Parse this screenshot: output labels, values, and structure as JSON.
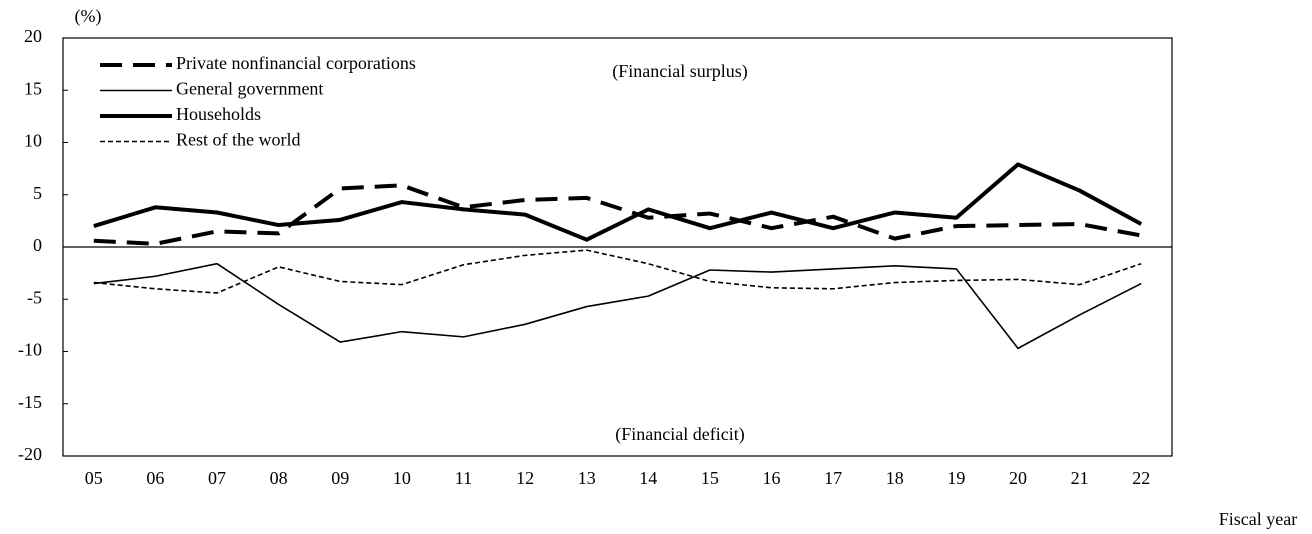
{
  "chart_data": {
    "type": "line",
    "y_unit_label": "(%)",
    "x_label": "Fiscal year",
    "annotations": [
      "(Financial surplus)",
      "(Financial deficit)"
    ],
    "categories": [
      "05",
      "06",
      "07",
      "08",
      "09",
      "10",
      "11",
      "12",
      "13",
      "14",
      "15",
      "16",
      "17",
      "18",
      "19",
      "20",
      "21",
      "22"
    ],
    "series": [
      {
        "name": "Private nonfinancial corporations",
        "color": "#000000",
        "dash": "long",
        "weight": "thick",
        "values": [
          0.6,
          0.3,
          1.5,
          1.3,
          5.6,
          5.9,
          3.8,
          4.5,
          4.7,
          2.8,
          3.2,
          1.8,
          2.9,
          0.8,
          2.0,
          2.1,
          2.2,
          1.1
        ]
      },
      {
        "name": "General government",
        "color": "#000000",
        "dash": "solid",
        "weight": "thin",
        "values": [
          -3.5,
          -2.8,
          -1.6,
          -5.5,
          -9.1,
          -8.1,
          -8.6,
          -7.4,
          -5.7,
          -4.7,
          -2.2,
          -2.4,
          -2.1,
          -1.8,
          -2.1,
          -9.7,
          -6.5,
          -3.5
        ]
      },
      {
        "name": "Households",
        "color": "#000000",
        "dash": "solid",
        "weight": "thick",
        "values": [
          2.0,
          3.8,
          3.3,
          2.1,
          2.6,
          4.3,
          3.6,
          3.1,
          0.7,
          3.6,
          1.8,
          3.3,
          1.8,
          3.3,
          2.8,
          7.9,
          5.4,
          2.2
        ]
      },
      {
        "name": "Rest of the world",
        "color": "#000000",
        "dash": "short",
        "weight": "thin",
        "values": [
          -3.4,
          -4.0,
          -4.4,
          -1.9,
          -3.3,
          -3.6,
          -1.7,
          -0.8,
          -0.3,
          -1.6,
          -3.3,
          -3.9,
          -4.0,
          -3.4,
          -3.2,
          -3.1,
          -3.6,
          -1.6
        ]
      }
    ],
    "ylim": [
      -20,
      20
    ],
    "yticks": [
      20,
      15,
      10,
      5,
      0,
      -5,
      -10,
      -15,
      -20
    ],
    "grid": false,
    "legend": "top-left"
  }
}
